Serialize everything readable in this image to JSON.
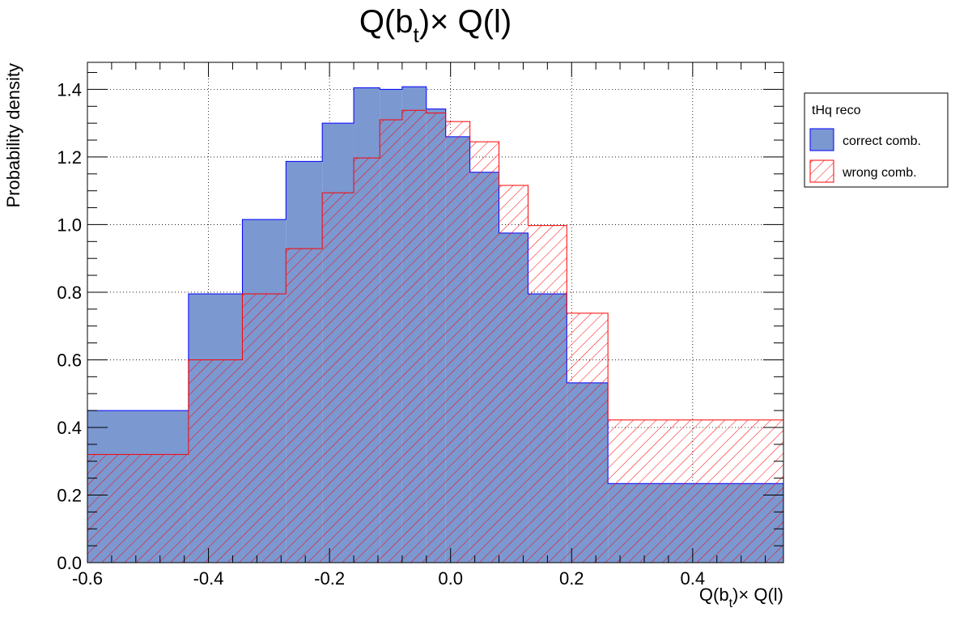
{
  "chart_data": {
    "type": "histogram",
    "title": "Q(b_t)× Q(l)",
    "title_parts": {
      "main": "Q(b",
      "sub": "t",
      "rest": ")× Q(l)"
    },
    "xlabel": "Q(b_t)× Q(l)",
    "xlabel_parts": {
      "main": "Q(b",
      "sub": "t",
      "rest": ")× Q(l)"
    },
    "ylabel": "Probability density",
    "xlim": [
      -0.6,
      0.55
    ],
    "ylim": [
      0,
      1.48
    ],
    "x_ticks": [
      "-0.6",
      "-0.4",
      "-0.2",
      "0.0",
      "0.2",
      "0.4"
    ],
    "x_tick_values": [
      -0.6,
      -0.4,
      -0.2,
      0.0,
      0.2,
      0.4
    ],
    "y_ticks": [
      "0.0",
      "0.2",
      "0.4",
      "0.6",
      "0.8",
      "1.0",
      "1.2",
      "1.4"
    ],
    "y_tick_values": [
      0.0,
      0.2,
      0.4,
      0.6,
      0.8,
      1.0,
      1.2,
      1.4
    ],
    "grid": true,
    "legend_position": "outside-right",
    "legend_header": "tHq reco",
    "bin_edges": [
      -0.6,
      -0.433,
      -0.344,
      -0.272,
      -0.212,
      -0.16,
      -0.117,
      -0.08,
      -0.04,
      -0.008,
      0.032,
      0.08,
      0.128,
      0.192,
      0.26,
      0.36,
      0.55
    ],
    "series": [
      {
        "name": "correct comb.",
        "style": "filled",
        "fill_color": "#7b98d1",
        "line_color": "#0000ff",
        "values": [
          0.45,
          0.795,
          1.015,
          1.187,
          1.3,
          1.405,
          1.4,
          1.408,
          1.342,
          1.26,
          1.155,
          0.975,
          0.795,
          0.532,
          0.234,
          0.234
        ]
      },
      {
        "name": "wrong comb.",
        "style": "hatched",
        "line_color": "#ff0000",
        "values": [
          0.32,
          0.6,
          0.795,
          0.929,
          1.094,
          1.197,
          1.31,
          1.338,
          1.33,
          1.305,
          1.245,
          1.116,
          0.997,
          0.738,
          0.422,
          0.422
        ]
      }
    ]
  }
}
